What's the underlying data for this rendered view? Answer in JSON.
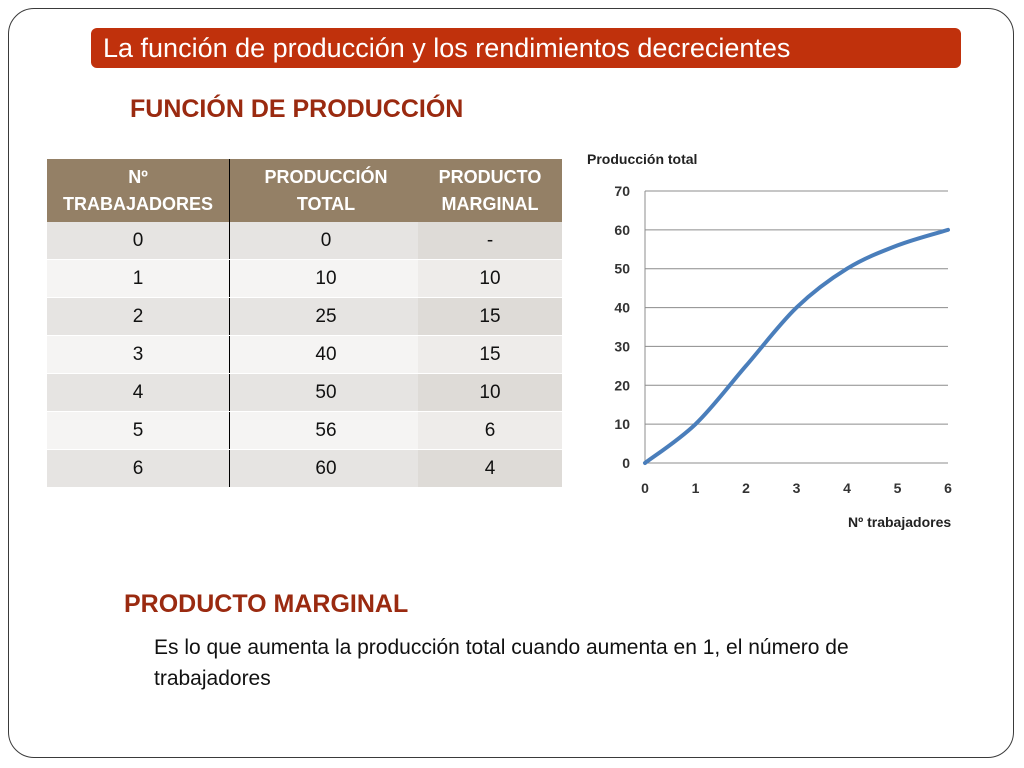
{
  "title": "La función de producción y los rendimientos decrecientes",
  "heading_function": "FUNCIÓN DE PRODUCCIÓN",
  "heading_marginal": "PRODUCTO MARGINAL",
  "table": {
    "headers": [
      "Nº TRABAJADORES",
      "PRODUCCIÓN TOTAL"
    ],
    "rows": [
      [
        "0",
        "0"
      ],
      [
        "1",
        "10"
      ],
      [
        "2",
        "25"
      ],
      [
        "3",
        "40"
      ],
      [
        "4",
        "50"
      ],
      [
        "5",
        "56"
      ],
      [
        "6",
        "60"
      ]
    ]
  },
  "marginal_table": {
    "header": "PRODUCTO MARGINAL",
    "values": [
      "-",
      "10",
      "15",
      "15",
      "10",
      "6",
      "4"
    ]
  },
  "chart_data": {
    "type": "line",
    "title": "",
    "ylabel": "Producción total",
    "xlabel": "Nº trabajadores",
    "x": [
      0,
      1,
      2,
      3,
      4,
      5,
      6
    ],
    "series": [
      {
        "values": [
          0,
          10,
          25,
          40,
          50,
          56,
          60
        ]
      }
    ],
    "xlim": [
      0,
      6
    ],
    "ylim": [
      0,
      70
    ],
    "yticks": [
      0,
      10,
      20,
      30,
      40,
      50,
      60,
      70
    ],
    "xticks": [
      0,
      1,
      2,
      3,
      4,
      5,
      6
    ],
    "grid": true,
    "line_color": "#4a7ebb"
  },
  "definition": "Es lo que aumenta la producción total cuando aumenta en 1, el número de trabajadores"
}
